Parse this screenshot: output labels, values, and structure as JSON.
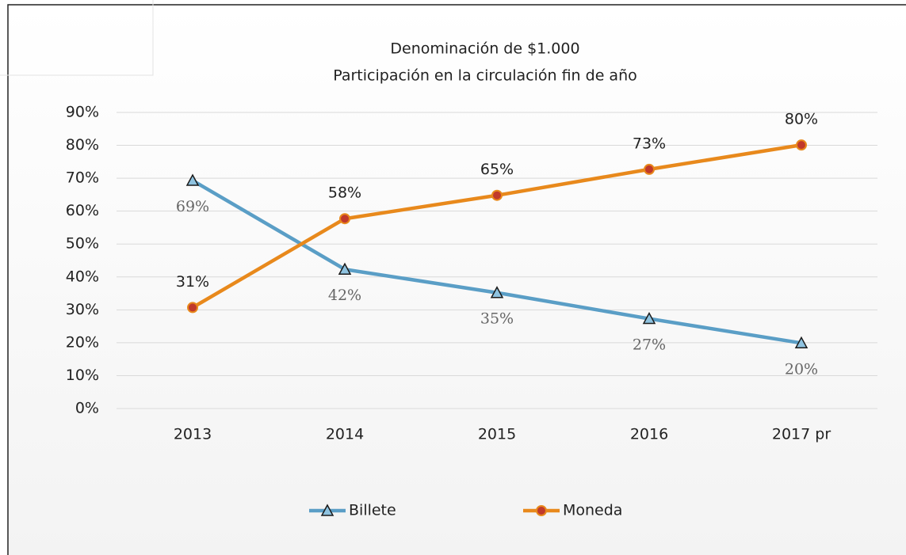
{
  "chart_data": {
    "type": "line",
    "title": "Denominación de $1.000",
    "subtitle": "Participación en la circulación fin de año",
    "categories": [
      "2013",
      "2014",
      "2015",
      "2016",
      "2017 pr"
    ],
    "series": [
      {
        "name": "Billete",
        "color": "#5a9ec6",
        "marker": "triangle",
        "marker_fill": "#8fc3e0",
        "values": [
          69.3,
          42.3,
          35.2,
          27.3,
          19.9
        ],
        "value_labels": [
          "69%",
          "42%",
          "35%",
          "27%",
          "20%"
        ]
      },
      {
        "name": "Moneda",
        "color": "#e8891c",
        "marker": "circle",
        "marker_fill": "#c0392b",
        "values": [
          30.7,
          57.7,
          64.8,
          72.7,
          80.1
        ],
        "value_labels": [
          "31%",
          "58%",
          "65%",
          "73%",
          "80%"
        ]
      }
    ],
    "ylim": [
      0,
      90
    ],
    "yticks": [
      {
        "value": 0,
        "label": "0%"
      },
      {
        "value": 10,
        "label": "10%"
      },
      {
        "value": 20,
        "label": "20%"
      },
      {
        "value": 30,
        "label": "30%"
      },
      {
        "value": 40,
        "label": "40%"
      },
      {
        "value": 50,
        "label": "50%"
      },
      {
        "value": 60,
        "label": "60%"
      },
      {
        "value": 70,
        "label": "70%"
      },
      {
        "value": 80,
        "label": "80%"
      },
      {
        "value": 90,
        "label": "90%"
      }
    ],
    "grid": true,
    "legend": "bottom"
  }
}
